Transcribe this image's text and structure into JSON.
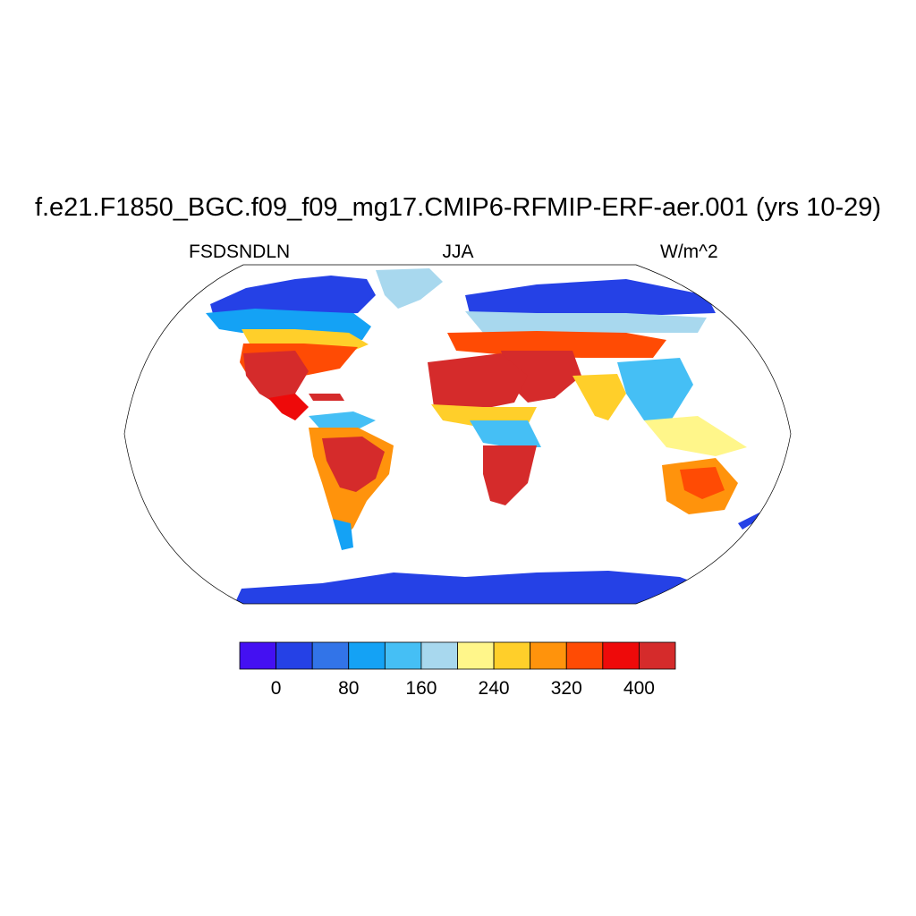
{
  "title": "f.e21.F1850_BGC.f09_f09_mg17.CMIP6-RFMIP-ERF-aer.001 (yrs 10-29)",
  "left_subtitle": "FSDSNDLN",
  "center_subtitle": "JJA",
  "right_subtitle": "W/m^2",
  "map": {
    "projection": "Robinson",
    "field": "FSDSNDLN",
    "season": "JJA",
    "units": "W/m^2",
    "ocean_masked": true,
    "coastlines": true
  },
  "colorbar": {
    "levels": [
      -40,
      0,
      40,
      80,
      120,
      160,
      200,
      240,
      280,
      320,
      360,
      400
    ],
    "colors": [
      "#4410f2",
      "#2541e6",
      "#3274e8",
      "#14a2f5",
      "#45bff5",
      "#a8d8ee",
      "#fff68a",
      "#ffcf2a",
      "#ff930c",
      "#ff4b04",
      "#ee0a0a",
      "#d52b2b"
    ],
    "tick_labels": [
      "0",
      "80",
      "160",
      "240",
      "320",
      "400"
    ],
    "tick_values": [
      0,
      80,
      160,
      240,
      320,
      400
    ]
  }
}
